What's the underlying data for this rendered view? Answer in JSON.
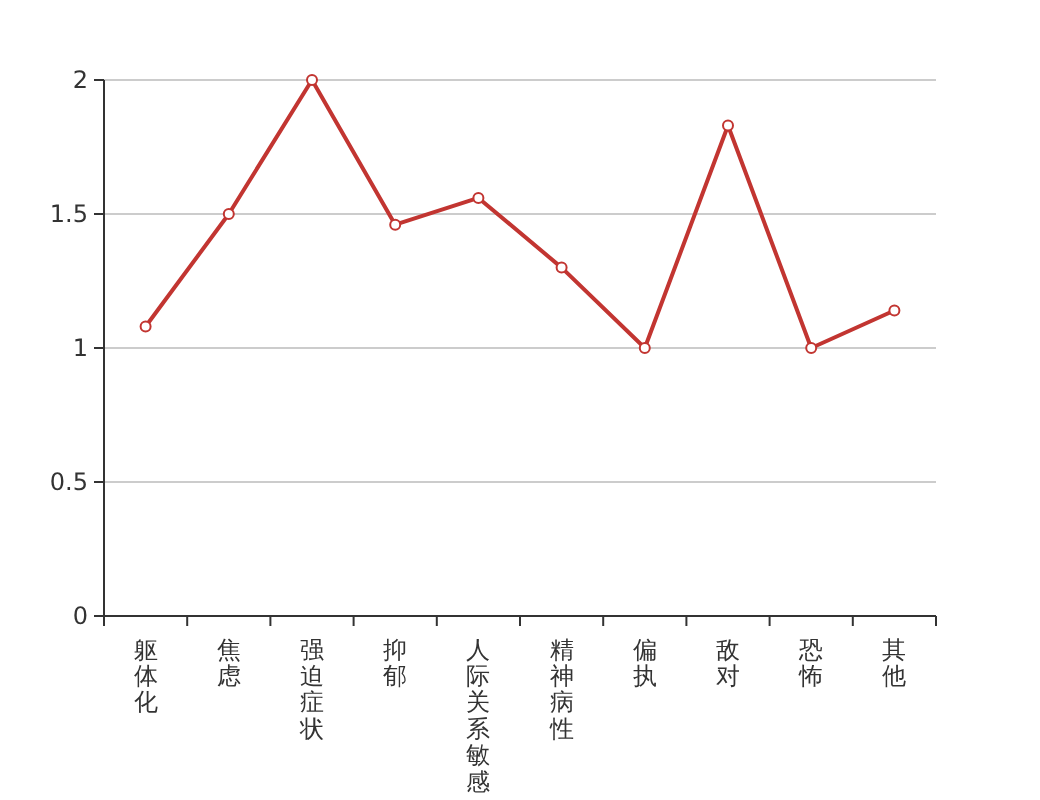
{
  "chart_data": {
    "type": "line",
    "categories": [
      "躯体化",
      "焦虑",
      "强迫症状",
      "抑郁",
      "人际关系敏感",
      "精神病性",
      "偏执",
      "敌对",
      "恐怖",
      "其他"
    ],
    "series": [
      {
        "color": "#c23531",
        "values": [
          1.08,
          1.5,
          2,
          1.46,
          1.56,
          1.3,
          1,
          1.83,
          1,
          1.14
        ]
      }
    ],
    "ylim": [
      0,
      2
    ],
    "yticks": [
      0,
      0.5,
      1,
      1.5,
      2
    ],
    "grid": "y",
    "marker": "circle",
    "line_style": "solid"
  }
}
